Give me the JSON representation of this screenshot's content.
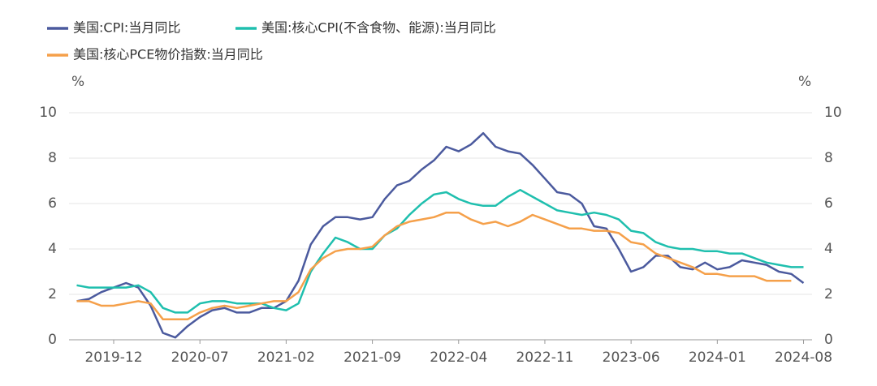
{
  "chart_data": {
    "type": "line",
    "y_unit": "%",
    "y2_unit": "%",
    "categories": [
      null,
      null,
      null,
      "2019-12",
      null,
      null,
      null,
      null,
      null,
      null,
      "2020-07",
      null,
      null,
      null,
      null,
      null,
      null,
      "2021-02",
      null,
      null,
      null,
      null,
      null,
      null,
      "2021-09",
      null,
      null,
      null,
      null,
      null,
      null,
      "2022-04",
      null,
      null,
      null,
      null,
      null,
      null,
      "2022-11",
      null,
      null,
      null,
      null,
      null,
      null,
      "2023-06",
      null,
      null,
      null,
      null,
      null,
      null,
      "2024-01",
      null,
      null,
      null,
      null,
      null,
      null,
      "2024-08"
    ],
    "series": [
      {
        "name": "美国:CPI:当月同比",
        "color": "#4b5a9e",
        "values": [
          1.7,
          1.8,
          2.1,
          2.3,
          2.5,
          2.3,
          1.5,
          0.3,
          0.1,
          0.6,
          1.0,
          1.3,
          1.4,
          1.2,
          1.2,
          1.4,
          1.4,
          1.7,
          2.6,
          4.2,
          5.0,
          5.4,
          5.4,
          5.3,
          5.4,
          6.2,
          6.8,
          7.0,
          7.5,
          7.9,
          8.5,
          8.3,
          8.6,
          9.1,
          8.5,
          8.3,
          8.2,
          7.7,
          7.1,
          6.5,
          6.4,
          6.0,
          5.0,
          4.9,
          4.0,
          3.0,
          3.2,
          3.7,
          3.7,
          3.2,
          3.1,
          3.4,
          3.1,
          3.2,
          3.5,
          3.4,
          3.3,
          3.0,
          2.9,
          2.5
        ]
      },
      {
        "name": "美国:核心CPI(不含食物、能源):当月同比",
        "color": "#1fbfae",
        "values": [
          2.4,
          2.3,
          2.3,
          2.3,
          2.3,
          2.4,
          2.1,
          1.4,
          1.2,
          1.2,
          1.6,
          1.7,
          1.7,
          1.6,
          1.6,
          1.6,
          1.4,
          1.3,
          1.6,
          3.0,
          3.8,
          4.5,
          4.3,
          4.0,
          4.0,
          4.6,
          4.9,
          5.5,
          6.0,
          6.4,
          6.5,
          6.2,
          6.0,
          5.9,
          5.9,
          6.3,
          6.6,
          6.3,
          6.0,
          5.7,
          5.6,
          5.5,
          5.6,
          5.5,
          5.3,
          4.8,
          4.7,
          4.3,
          4.1,
          4.0,
          4.0,
          3.9,
          3.9,
          3.8,
          3.8,
          3.6,
          3.4,
          3.3,
          3.2,
          3.2
        ]
      },
      {
        "name": "美国:核心PCE物价指数:当月同比",
        "color": "#f5a04a",
        "values": [
          1.7,
          1.7,
          1.5,
          1.5,
          1.6,
          1.7,
          1.6,
          0.9,
          0.9,
          0.9,
          1.2,
          1.4,
          1.5,
          1.4,
          1.5,
          1.6,
          1.7,
          1.7,
          2.1,
          3.1,
          3.6,
          3.9,
          4.0,
          4.0,
          4.1,
          4.6,
          5.0,
          5.2,
          5.3,
          5.4,
          5.6,
          5.6,
          5.3,
          5.1,
          5.2,
          5.0,
          5.2,
          5.5,
          5.3,
          5.1,
          4.9,
          4.9,
          4.8,
          4.8,
          4.7,
          4.3,
          4.2,
          3.8,
          3.6,
          3.4,
          3.2,
          2.9,
          2.9,
          2.8,
          2.8,
          2.8,
          2.6,
          2.6,
          2.6,
          null
        ]
      }
    ],
    "ylim": [
      0,
      10
    ],
    "yticks": [
      0,
      2,
      4,
      6,
      8,
      10
    ],
    "y2lim": [
      0,
      10
    ],
    "y2ticks": [
      0,
      2,
      4,
      6,
      8,
      10
    ],
    "grid": true
  }
}
